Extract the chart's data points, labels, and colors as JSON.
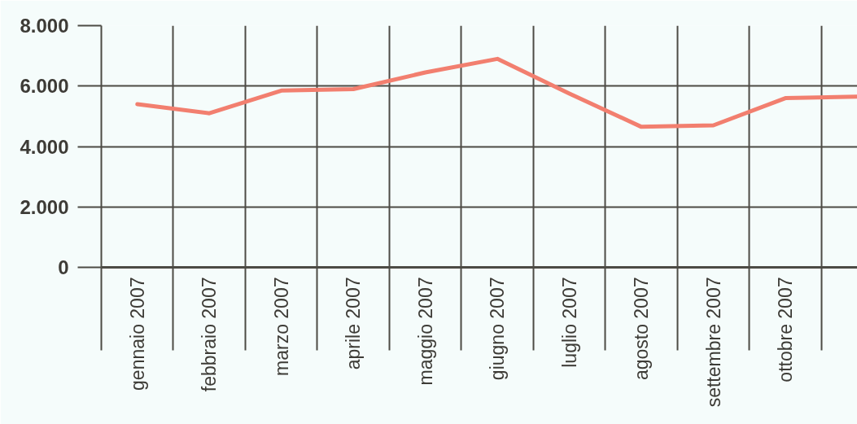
{
  "chart_data": {
    "type": "line",
    "categories": [
      "gennaio 2007",
      "febbraio 2007",
      "marzo 2007",
      "aprile 2007",
      "maggio 2007",
      "giugno 2007",
      "luglio 2007",
      "agosto 2007",
      "settembre 2007",
      "ottobre 2007",
      null
    ],
    "values": [
      5400,
      5100,
      5850,
      5900,
      6450,
      6900,
      5750,
      4650,
      4700,
      5600,
      5650
    ],
    "color": "#f27f6f",
    "ylim": [
      0,
      8000
    ],
    "yticks": [
      {
        "value": 0,
        "label": "0"
      },
      {
        "value": 2000,
        "label": "2.000"
      },
      {
        "value": 4000,
        "label": "4.000"
      },
      {
        "value": 6000,
        "label": "6.000"
      },
      {
        "value": 8000,
        "label": "8.000"
      }
    ],
    "grid": true
  }
}
